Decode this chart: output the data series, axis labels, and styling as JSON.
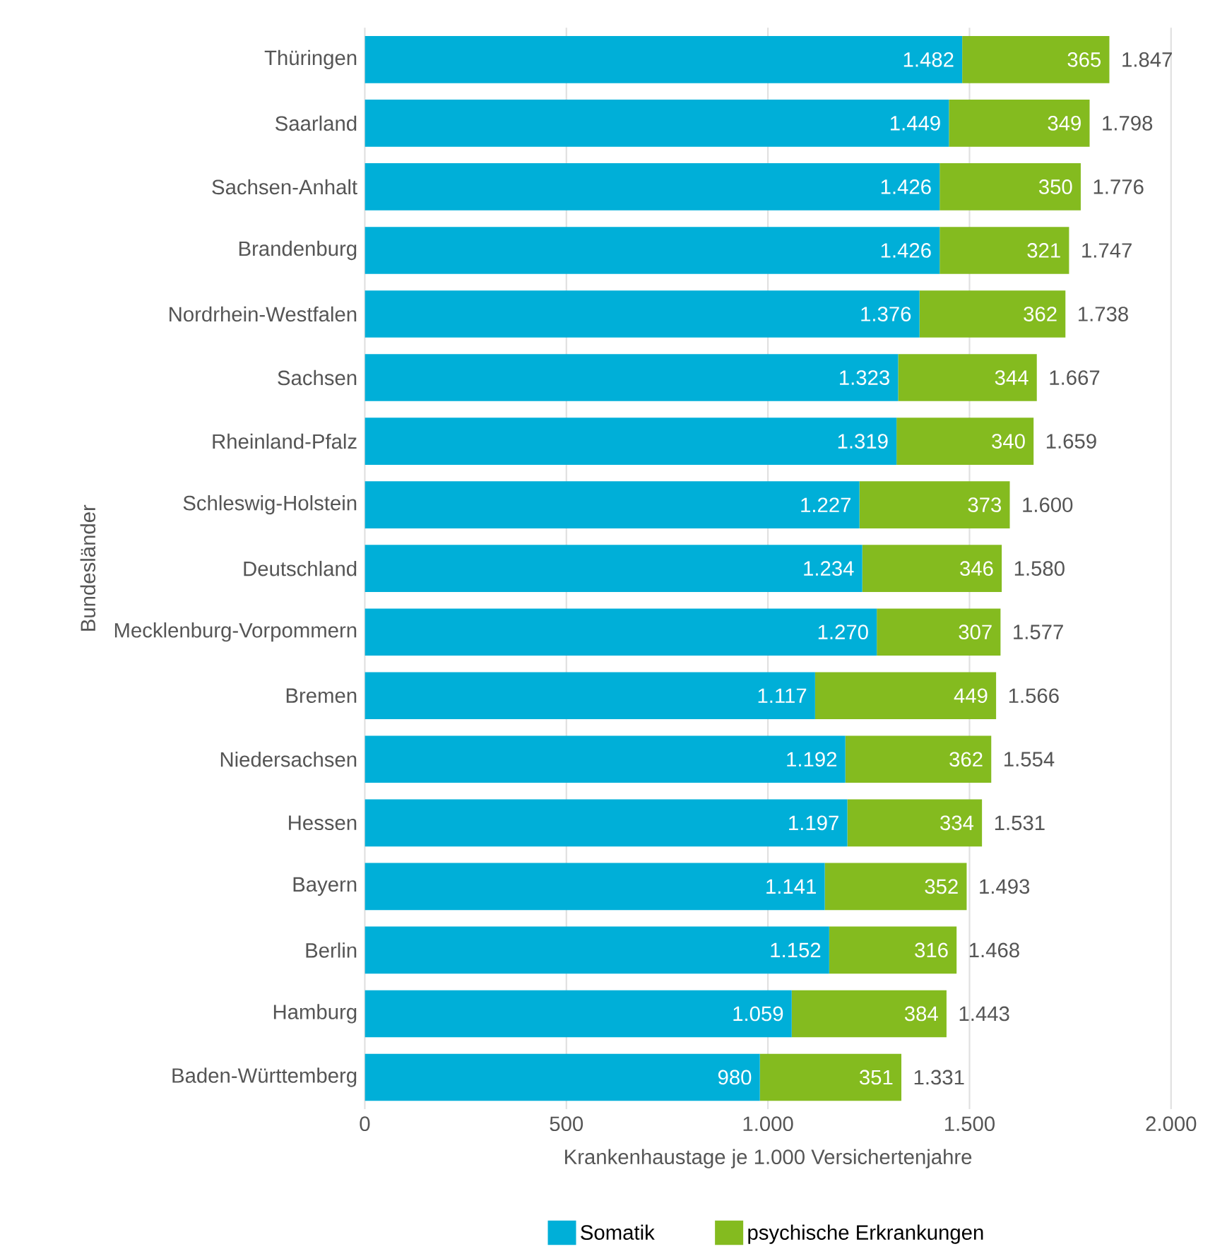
{
  "chart_data": {
    "type": "bar",
    "orientation": "horizontal",
    "stacked": true,
    "categories": [
      "Thüringen",
      "Saarland",
      "Sachsen-Anhalt",
      "Brandenburg",
      "Nordrhein-Westfalen",
      "Sachsen",
      "Rheinland-Pfalz",
      "Schleswig-Holstein",
      "Deutschland",
      "Mecklenburg-Vorpommern",
      "Bremen",
      "Niedersachsen",
      "Hessen",
      "Bayern",
      "Berlin",
      "Hamburg",
      "Baden-Württemberg"
    ],
    "series": [
      {
        "name": "Somatik",
        "color": "#00afd8",
        "values": [
          1482,
          1449,
          1426,
          1426,
          1376,
          1323,
          1319,
          1227,
          1234,
          1270,
          1117,
          1192,
          1197,
          1141,
          1152,
          1059,
          980
        ],
        "value_labels": [
          "1.482",
          "1.449",
          "1.426",
          "1.426",
          "1.376",
          "1.323",
          "1.319",
          "1.227",
          "1.234",
          "1.270",
          "1.117",
          "1.192",
          "1.197",
          "1.141",
          "1.152",
          "1.059",
          "980"
        ]
      },
      {
        "name": "psychische Erkrankungen",
        "color": "#84bb1f",
        "values": [
          365,
          349,
          350,
          321,
          362,
          344,
          340,
          373,
          346,
          307,
          449,
          362,
          334,
          352,
          316,
          384,
          351
        ],
        "value_labels": [
          "365",
          "349",
          "350",
          "321",
          "362",
          "344",
          "340",
          "373",
          "346",
          "307",
          "449",
          "362",
          "334",
          "352",
          "316",
          "384",
          "351"
        ]
      }
    ],
    "totals": [
      "1.847",
      "1.798",
      "1.776",
      "1.747",
      "1.738",
      "1.667",
      "1.659",
      "1.600",
      "1.580",
      "1.577",
      "1.566",
      "1.554",
      "1.531",
      "1.493",
      "1.468",
      "1.443",
      "1.331"
    ],
    "xlim": [
      0,
      2000
    ],
    "xticks": [
      0,
      500,
      {
        "value": 1000,
        "label": "1.000"
      },
      {
        "value": 1500,
        "label": "1.500"
      },
      {
        "value": 2000,
        "label": "2.000"
      }
    ],
    "xlabel": "Krankenhaustage je 1.000 Versichertenjahre",
    "ylabel": "Bundesländer",
    "grid": "x",
    "legend": "bottom"
  }
}
